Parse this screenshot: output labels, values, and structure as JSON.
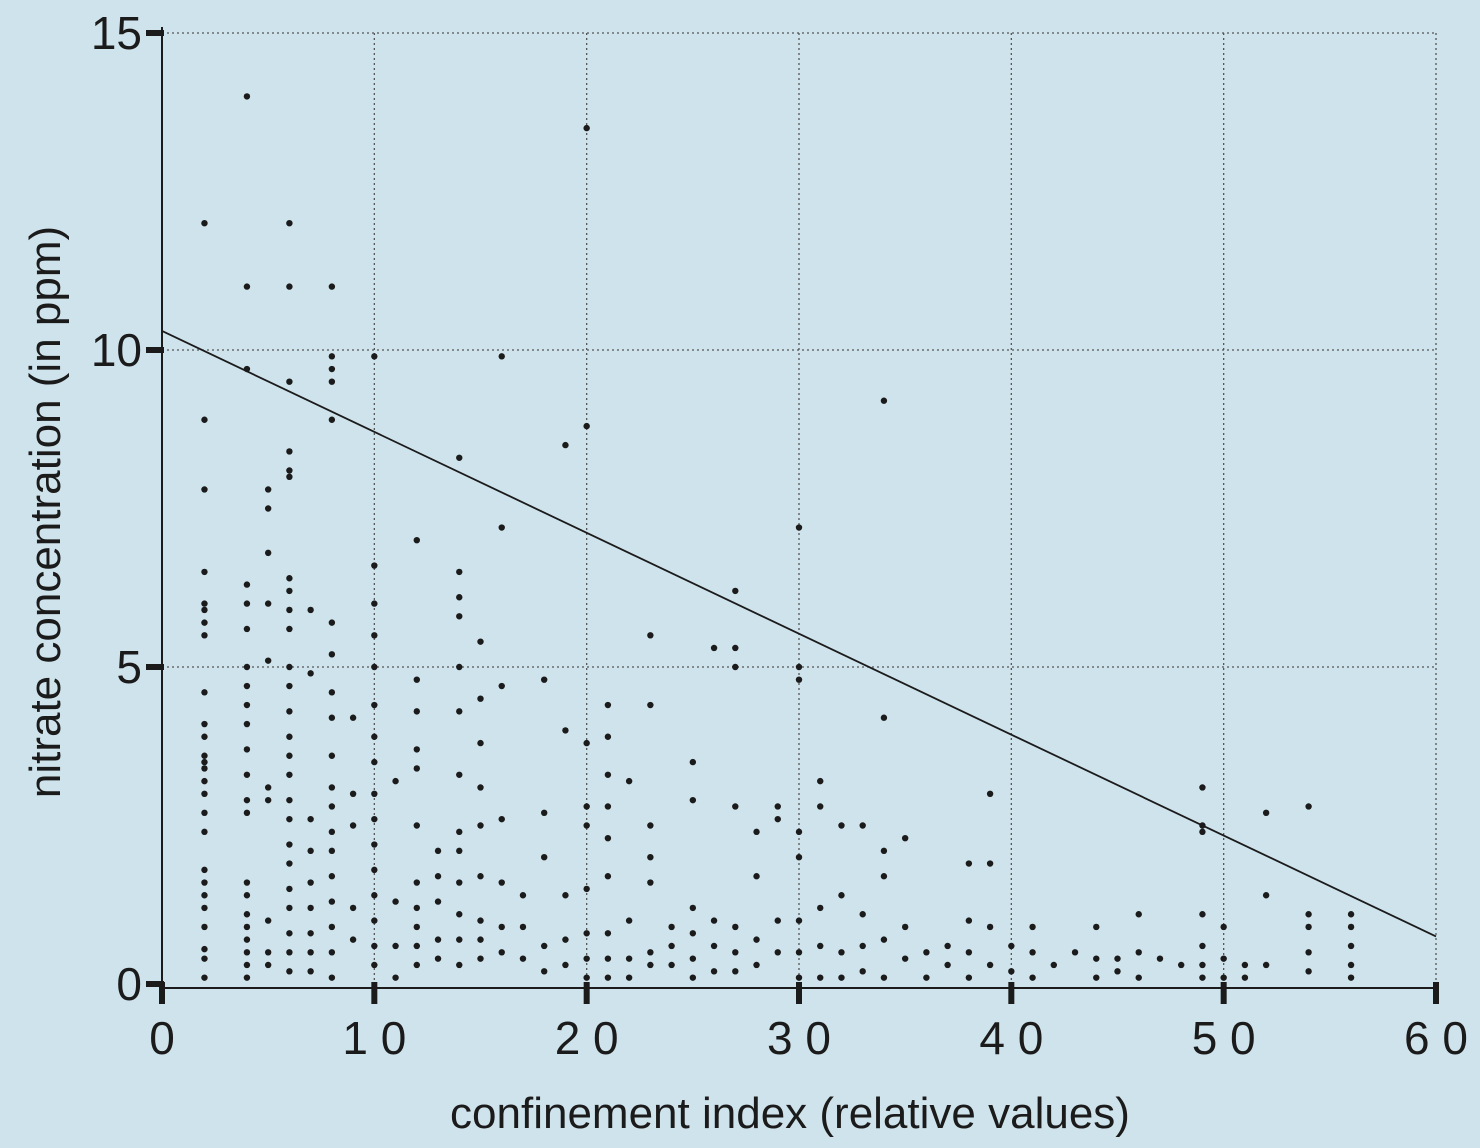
{
  "colors": {
    "background": "#cfe3ec",
    "ink": "#1b1b1b",
    "grid": "#555555"
  },
  "chart_data": {
    "type": "scatter",
    "title": "",
    "xlabel": "confinement index (relative values)",
    "ylabel": "nitrate concentration (in ppm)",
    "xlim": [
      0,
      60
    ],
    "ylim": [
      0,
      15
    ],
    "grid": true,
    "legend": "none",
    "x_ticks": [
      0,
      10,
      20,
      30,
      40,
      50,
      60
    ],
    "x_tick_labels": [
      "0",
      "1 0",
      "2 0",
      "3 0",
      "4 0",
      "5 0",
      "6 0"
    ],
    "y_ticks": [
      0,
      5,
      10,
      15
    ],
    "y_tick_labels": [
      "0",
      "5",
      "10",
      "15"
    ],
    "trend_line": {
      "x": [
        0,
        60
      ],
      "y": [
        10.3,
        0.75
      ]
    },
    "series": [
      {
        "points": [
          [
            2,
            12.0
          ],
          [
            2,
            8.9
          ],
          [
            2,
            7.8
          ],
          [
            2,
            6.5
          ],
          [
            2,
            6.0
          ],
          [
            2,
            5.9
          ],
          [
            2,
            5.7
          ],
          [
            2,
            5.5
          ],
          [
            2,
            4.6
          ],
          [
            2,
            4.1
          ],
          [
            2,
            3.9
          ],
          [
            2,
            3.6
          ],
          [
            2,
            3.5
          ],
          [
            2,
            3.4
          ],
          [
            2,
            3.2
          ],
          [
            2,
            3.0
          ],
          [
            2,
            2.7
          ],
          [
            2,
            2.4
          ],
          [
            2,
            1.8
          ],
          [
            2,
            1.6
          ],
          [
            2,
            1.4
          ],
          [
            2,
            1.2
          ],
          [
            2,
            0.9
          ],
          [
            2,
            0.55
          ],
          [
            2,
            0.4
          ],
          [
            2,
            0.1
          ],
          [
            4,
            14.0
          ],
          [
            4,
            11.0
          ],
          [
            4,
            9.7
          ],
          [
            4,
            6.3
          ],
          [
            4,
            6.0
          ],
          [
            4,
            5.6
          ],
          [
            4,
            5.0
          ],
          [
            4,
            4.7
          ],
          [
            4,
            4.4
          ],
          [
            4,
            4.1
          ],
          [
            4,
            3.7
          ],
          [
            4,
            3.3
          ],
          [
            4,
            2.9
          ],
          [
            4,
            2.7
          ],
          [
            4,
            1.6
          ],
          [
            4,
            1.4
          ],
          [
            4,
            1.1
          ],
          [
            4,
            0.9
          ],
          [
            4,
            0.7
          ],
          [
            4,
            0.5
          ],
          [
            4,
            0.3
          ],
          [
            4,
            0.1
          ],
          [
            5,
            7.8
          ],
          [
            5,
            7.5
          ],
          [
            5,
            6.8
          ],
          [
            5,
            6.0
          ],
          [
            5,
            5.1
          ],
          [
            5,
            3.1
          ],
          [
            5,
            2.9
          ],
          [
            5,
            1.0
          ],
          [
            5,
            0.5
          ],
          [
            5,
            0.3
          ],
          [
            6,
            12.0
          ],
          [
            6,
            11.0
          ],
          [
            6,
            9.5
          ],
          [
            6,
            8.4
          ],
          [
            6,
            8.1
          ],
          [
            6,
            8.0
          ],
          [
            6,
            6.4
          ],
          [
            6,
            6.2
          ],
          [
            6,
            5.9
          ],
          [
            6,
            5.6
          ],
          [
            6,
            5.0
          ],
          [
            6,
            4.7
          ],
          [
            6,
            4.3
          ],
          [
            6,
            3.9
          ],
          [
            6,
            3.6
          ],
          [
            6,
            3.3
          ],
          [
            6,
            2.9
          ],
          [
            6,
            2.6
          ],
          [
            6,
            2.2
          ],
          [
            6,
            1.9
          ],
          [
            6,
            1.5
          ],
          [
            6,
            1.2
          ],
          [
            6,
            0.8
          ],
          [
            6,
            0.5
          ],
          [
            6,
            0.2
          ],
          [
            7,
            5.9
          ],
          [
            7,
            4.9
          ],
          [
            7,
            2.6
          ],
          [
            7,
            2.1
          ],
          [
            7,
            1.6
          ],
          [
            7,
            1.2
          ],
          [
            7,
            0.8
          ],
          [
            7,
            0.5
          ],
          [
            7,
            0.2
          ],
          [
            8,
            11.0
          ],
          [
            8,
            9.9
          ],
          [
            8,
            9.7
          ],
          [
            8,
            9.5
          ],
          [
            8,
            8.9
          ],
          [
            8,
            5.7
          ],
          [
            8,
            5.2
          ],
          [
            8,
            4.6
          ],
          [
            8,
            4.2
          ],
          [
            8,
            3.6
          ],
          [
            8,
            3.1
          ],
          [
            8,
            2.8
          ],
          [
            8,
            2.4
          ],
          [
            8,
            2.1
          ],
          [
            8,
            1.7
          ],
          [
            8,
            1.3
          ],
          [
            8,
            0.9
          ],
          [
            8,
            0.5
          ],
          [
            8,
            0.1
          ],
          [
            9,
            4.2
          ],
          [
            9,
            3.0
          ],
          [
            9,
            2.5
          ],
          [
            9,
            1.2
          ],
          [
            9,
            0.7
          ],
          [
            10,
            9.9
          ],
          [
            10,
            6.6
          ],
          [
            10,
            6.0
          ],
          [
            10,
            5.5
          ],
          [
            10,
            5.0
          ],
          [
            10,
            4.4
          ],
          [
            10,
            3.9
          ],
          [
            10,
            3.5
          ],
          [
            10,
            3.0
          ],
          [
            10,
            2.6
          ],
          [
            10,
            2.2
          ],
          [
            10,
            1.8
          ],
          [
            10,
            1.4
          ],
          [
            10,
            1.0
          ],
          [
            10,
            0.6
          ],
          [
            10,
            0.3
          ],
          [
            11,
            3.2
          ],
          [
            11,
            1.3
          ],
          [
            11,
            0.6
          ],
          [
            11,
            0.1
          ],
          [
            12,
            7.0
          ],
          [
            12,
            4.8
          ],
          [
            12,
            4.3
          ],
          [
            12,
            3.7
          ],
          [
            12,
            3.4
          ],
          [
            12,
            2.5
          ],
          [
            12,
            1.6
          ],
          [
            12,
            1.2
          ],
          [
            12,
            0.9
          ],
          [
            12,
            0.6
          ],
          [
            12,
            0.3
          ],
          [
            13,
            2.1
          ],
          [
            13,
            1.7
          ],
          [
            13,
            1.3
          ],
          [
            13,
            0.7
          ],
          [
            13,
            0.4
          ],
          [
            14,
            8.3
          ],
          [
            14,
            6.5
          ],
          [
            14,
            6.1
          ],
          [
            14,
            5.8
          ],
          [
            14,
            5.0
          ],
          [
            14,
            4.3
          ],
          [
            14,
            3.3
          ],
          [
            14,
            2.4
          ],
          [
            14,
            2.1
          ],
          [
            14,
            1.6
          ],
          [
            14,
            1.1
          ],
          [
            14,
            0.7
          ],
          [
            14,
            0.3
          ],
          [
            15,
            5.4
          ],
          [
            15,
            4.5
          ],
          [
            15,
            3.8
          ],
          [
            15,
            3.1
          ],
          [
            15,
            2.5
          ],
          [
            15,
            1.7
          ],
          [
            15,
            1.0
          ],
          [
            15,
            0.7
          ],
          [
            15,
            0.4
          ],
          [
            16,
            9.9
          ],
          [
            16,
            7.2
          ],
          [
            16,
            4.7
          ],
          [
            16,
            2.6
          ],
          [
            16,
            1.6
          ],
          [
            16,
            0.9
          ],
          [
            16,
            0.5
          ],
          [
            17,
            1.4
          ],
          [
            17,
            0.9
          ],
          [
            17,
            0.4
          ],
          [
            18,
            4.8
          ],
          [
            18,
            2.7
          ],
          [
            18,
            2.0
          ],
          [
            18,
            0.6
          ],
          [
            18,
            0.2
          ],
          [
            19,
            8.5
          ],
          [
            19,
            4.0
          ],
          [
            19,
            1.4
          ],
          [
            19,
            0.7
          ],
          [
            19,
            0.3
          ],
          [
            20,
            13.5
          ],
          [
            20,
            8.8
          ],
          [
            20,
            3.8
          ],
          [
            20,
            2.8
          ],
          [
            20,
            2.5
          ],
          [
            20,
            1.5
          ],
          [
            20,
            0.8
          ],
          [
            20,
            0.4
          ],
          [
            20,
            0.1
          ],
          [
            21,
            4.4
          ],
          [
            21,
            3.9
          ],
          [
            21,
            3.3
          ],
          [
            21,
            2.8
          ],
          [
            21,
            2.3
          ],
          [
            21,
            1.7
          ],
          [
            21,
            0.8
          ],
          [
            21,
            0.4
          ],
          [
            21,
            0.1
          ],
          [
            22,
            3.2
          ],
          [
            22,
            1.0
          ],
          [
            22,
            0.4
          ],
          [
            22,
            0.1
          ],
          [
            23,
            5.5
          ],
          [
            23,
            4.4
          ],
          [
            23,
            2.5
          ],
          [
            23,
            2.0
          ],
          [
            23,
            1.6
          ],
          [
            23,
            0.5
          ],
          [
            23,
            0.3
          ],
          [
            24,
            0.9
          ],
          [
            24,
            0.6
          ],
          [
            24,
            0.3
          ],
          [
            25,
            3.5
          ],
          [
            25,
            2.9
          ],
          [
            25,
            1.2
          ],
          [
            25,
            0.8
          ],
          [
            25,
            0.4
          ],
          [
            25,
            0.1
          ],
          [
            26,
            5.3
          ],
          [
            26,
            1.0
          ],
          [
            26,
            0.6
          ],
          [
            26,
            0.2
          ],
          [
            27,
            6.2
          ],
          [
            27,
            5.3
          ],
          [
            27,
            5.0
          ],
          [
            27,
            2.8
          ],
          [
            27,
            0.9
          ],
          [
            27,
            0.5
          ],
          [
            27,
            0.2
          ],
          [
            28,
            2.4
          ],
          [
            28,
            1.7
          ],
          [
            28,
            0.7
          ],
          [
            28,
            0.3
          ],
          [
            29,
            2.8
          ],
          [
            29,
            2.6
          ],
          [
            29,
            1.0
          ],
          [
            29,
            0.5
          ],
          [
            30,
            7.2
          ],
          [
            30,
            5.0
          ],
          [
            30,
            4.8
          ],
          [
            30,
            2.4
          ],
          [
            30,
            2.0
          ],
          [
            30,
            1.0
          ],
          [
            30,
            0.5
          ],
          [
            30,
            0.1
          ],
          [
            31,
            3.2
          ],
          [
            31,
            2.8
          ],
          [
            31,
            1.2
          ],
          [
            31,
            0.6
          ],
          [
            31,
            0.1
          ],
          [
            32,
            2.5
          ],
          [
            32,
            1.4
          ],
          [
            32,
            0.5
          ],
          [
            32,
            0.1
          ],
          [
            33,
            2.5
          ],
          [
            33,
            1.1
          ],
          [
            33,
            0.6
          ],
          [
            33,
            0.2
          ],
          [
            34,
            9.2
          ],
          [
            34,
            4.2
          ],
          [
            34,
            2.1
          ],
          [
            34,
            1.7
          ],
          [
            34,
            0.7
          ],
          [
            34,
            0.1
          ],
          [
            35,
            2.3
          ],
          [
            35,
            0.9
          ],
          [
            35,
            0.4
          ],
          [
            36,
            0.5
          ],
          [
            36,
            0.1
          ],
          [
            37,
            0.6
          ],
          [
            37,
            0.3
          ],
          [
            38,
            1.9
          ],
          [
            38,
            1.0
          ],
          [
            38,
            0.5
          ],
          [
            38,
            0.1
          ],
          [
            39,
            3.0
          ],
          [
            39,
            1.9
          ],
          [
            39,
            0.9
          ],
          [
            39,
            0.3
          ],
          [
            40,
            0.6
          ],
          [
            40,
            0.2
          ],
          [
            41,
            0.9
          ],
          [
            41,
            0.5
          ],
          [
            41,
            0.1
          ],
          [
            42,
            0.3
          ],
          [
            43,
            0.5
          ],
          [
            44,
            0.9
          ],
          [
            44,
            0.4
          ],
          [
            44,
            0.1
          ],
          [
            45,
            0.4
          ],
          [
            45,
            0.2
          ],
          [
            46,
            1.1
          ],
          [
            46,
            0.5
          ],
          [
            46,
            0.1
          ],
          [
            47,
            0.4
          ],
          [
            48,
            0.3
          ],
          [
            49,
            3.1
          ],
          [
            49,
            2.5
          ],
          [
            49,
            2.4
          ],
          [
            49,
            1.1
          ],
          [
            49,
            0.6
          ],
          [
            49,
            0.3
          ],
          [
            49,
            0.1
          ],
          [
            50,
            0.9
          ],
          [
            50,
            0.4
          ],
          [
            50,
            0.1
          ],
          [
            51,
            0.3
          ],
          [
            51,
            0.1
          ],
          [
            52,
            2.7
          ],
          [
            52,
            1.4
          ],
          [
            52,
            0.3
          ],
          [
            54,
            2.8
          ],
          [
            54,
            1.1
          ],
          [
            54,
            0.9
          ],
          [
            54,
            0.5
          ],
          [
            54,
            0.2
          ],
          [
            56,
            1.1
          ],
          [
            56,
            0.9
          ],
          [
            56,
            0.6
          ],
          [
            56,
            0.3
          ],
          [
            56,
            0.1
          ]
        ]
      }
    ]
  }
}
